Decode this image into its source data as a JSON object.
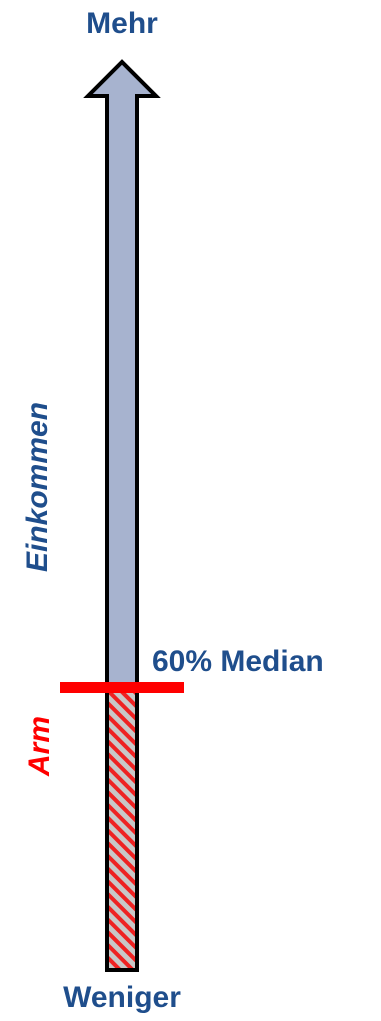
{
  "labels": {
    "top": "Mehr",
    "income_axis": "Einkommen",
    "median": "60% Median",
    "poor": "Arm",
    "bottom": "Weniger"
  },
  "colors": {
    "text_blue": "#1f4e8c",
    "poor_red": "#ff0000",
    "arrow_fill": "#a7b3cf",
    "hatch_base": "#c8c8c8",
    "hatch_stripe": "#ee2222",
    "outline": "#000000"
  },
  "icons": {
    "arrow": "up-arrow-icon"
  }
}
